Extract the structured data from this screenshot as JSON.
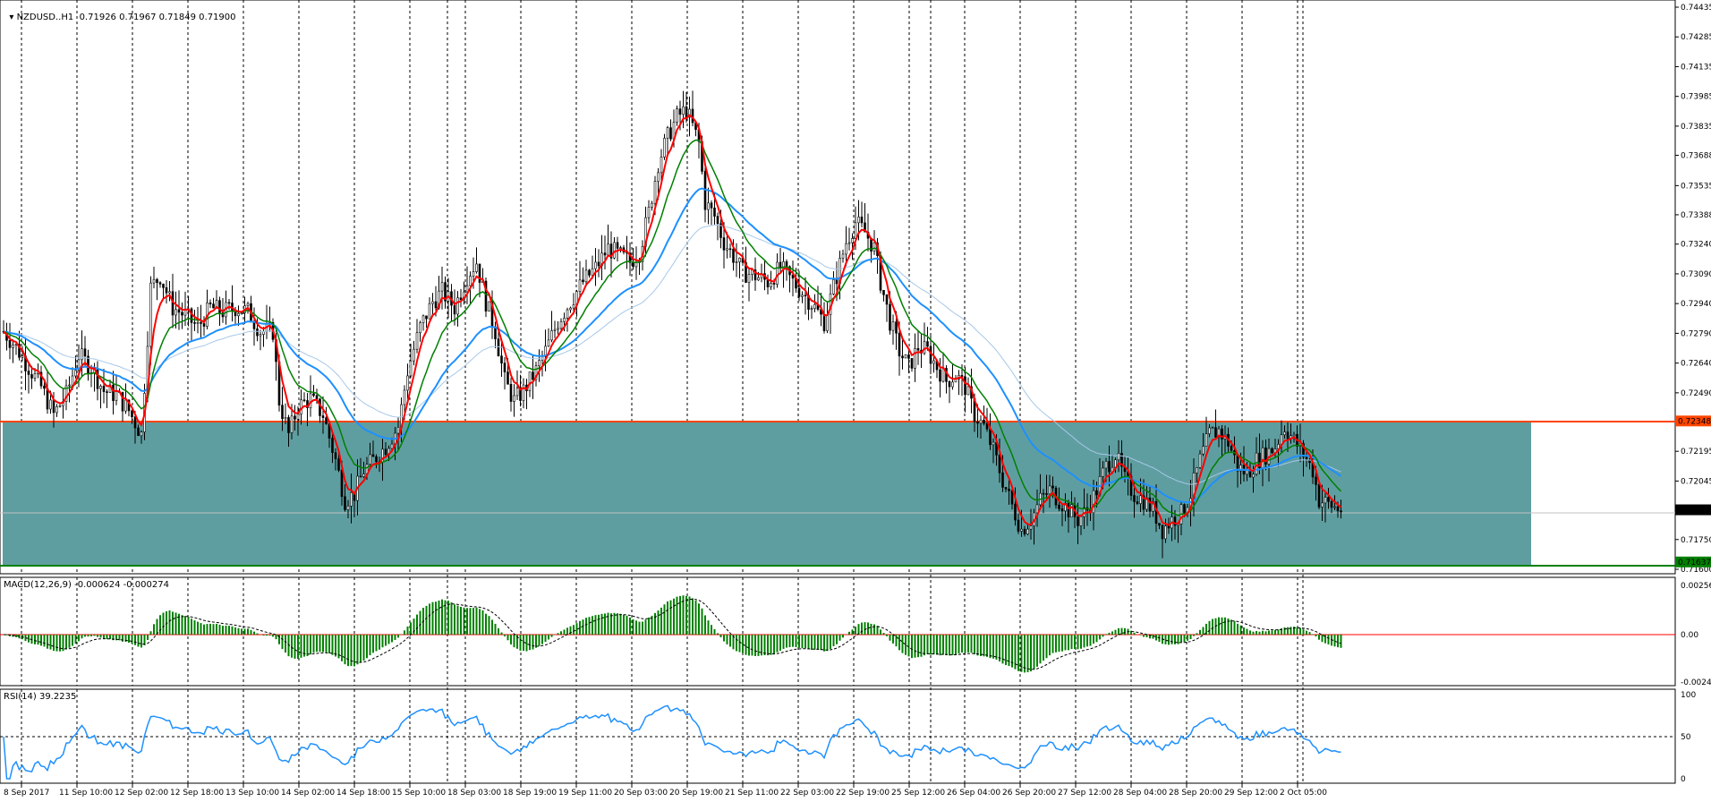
{
  "header": {
    "symbol": "NZDUSD..H1",
    "ohlc": "0.71926 0.71967 0.71849 0.71900",
    "macd": "MACD(12,26,9) -0.000624 -0.000274",
    "rsi": "RSI(14) 39.2235"
  },
  "chart_data": {
    "type": "candlestick",
    "symbol": "NZDUSD..H1",
    "timeframe": "H1",
    "price_axis": {
      "ticks": [
        "0.74435",
        "0.74285",
        "0.74135",
        "0.73985",
        "0.73835",
        "0.73688",
        "0.73535",
        "0.73388",
        "0.73240",
        "0.73090",
        "0.72940",
        "0.72790",
        "0.72640",
        "0.72490",
        "0.72195",
        "0.72045",
        "0.71750",
        "0.71600"
      ],
      "ylim": [
        0.716,
        0.74435
      ]
    },
    "price_markers": {
      "resistance": "0.72348",
      "current": "0.71900",
      "support": "0.71637"
    },
    "zone": {
      "from": 0.71637,
      "to": 0.72348,
      "color": "#5f9ea0"
    },
    "x_labels": [
      "8 Sep 2017",
      "11 Sep 10:00",
      "12 Sep 02:00",
      "12 Sep 18:00",
      "13 Sep 10:00",
      "14 Sep 02:00",
      "14 Sep 18:00",
      "15 Sep 10:00",
      "18 Sep 03:00",
      "18 Sep 19:00",
      "19 Sep 11:00",
      "20 Sep 03:00",
      "20 Sep 19:00",
      "21 Sep 11:00",
      "22 Sep 03:00",
      "22 Sep 19:00",
      "25 Sep 12:00",
      "26 Sep 04:00",
      "26 Sep 20:00",
      "27 Sep 12:00",
      "28 Sep 04:00",
      "28 Sep 20:00",
      "29 Sep 12:00",
      "2 Oct 05:00"
    ],
    "close_path": [
      [
        0,
        0.728
      ],
      [
        4,
        0.7272
      ],
      [
        8,
        0.7262
      ],
      [
        12,
        0.7252
      ],
      [
        16,
        0.7238
      ],
      [
        20,
        0.7248
      ],
      [
        24,
        0.7268
      ],
      [
        28,
        0.7262
      ],
      [
        32,
        0.725
      ],
      [
        36,
        0.7248
      ],
      [
        40,
        0.724
      ],
      [
        44,
        0.7228
      ],
      [
        47,
        0.7302
      ],
      [
        50,
        0.7308
      ],
      [
        54,
        0.7292
      ],
      [
        58,
        0.7288
      ],
      [
        62,
        0.7282
      ],
      [
        66,
        0.7292
      ],
      [
        70,
        0.729
      ],
      [
        74,
        0.7292
      ],
      [
        78,
        0.729
      ],
      [
        82,
        0.728
      ],
      [
        86,
        0.728
      ],
      [
        88,
        0.7245
      ],
      [
        91,
        0.7228
      ],
      [
        94,
        0.7242
      ],
      [
        98,
        0.7246
      ],
      [
        102,
        0.7238
      ],
      [
        106,
        0.7215
      ],
      [
        109,
        0.7195
      ],
      [
        112,
        0.7198
      ],
      [
        115,
        0.721
      ],
      [
        118,
        0.7215
      ],
      [
        122,
        0.7222
      ],
      [
        126,
        0.7232
      ],
      [
        129,
        0.726
      ],
      [
        133,
        0.7282
      ],
      [
        137,
        0.7295
      ],
      [
        140,
        0.73
      ],
      [
        144,
        0.7292
      ],
      [
        148,
        0.7308
      ],
      [
        151,
        0.7315
      ],
      [
        154,
        0.7295
      ],
      [
        157,
        0.728
      ],
      [
        160,
        0.7255
      ],
      [
        163,
        0.7245
      ],
      [
        166,
        0.725
      ],
      [
        170,
        0.726
      ],
      [
        173,
        0.727
      ],
      [
        177,
        0.7285
      ],
      [
        181,
        0.7295
      ],
      [
        185,
        0.7305
      ],
      [
        189,
        0.7312
      ],
      [
        193,
        0.7322
      ],
      [
        197,
        0.7318
      ],
      [
        200,
        0.7315
      ],
      [
        203,
        0.732
      ],
      [
        206,
        0.734
      ],
      [
        209,
        0.7365
      ],
      [
        212,
        0.7378
      ],
      [
        215,
        0.7388
      ],
      [
        218,
        0.7392
      ],
      [
        222,
        0.7375
      ],
      [
        224,
        0.7345
      ],
      [
        227,
        0.7338
      ],
      [
        230,
        0.7325
      ],
      [
        233,
        0.7318
      ],
      [
        236,
        0.731
      ],
      [
        240,
        0.7308
      ],
      [
        244,
        0.7305
      ],
      [
        248,
        0.7312
      ],
      [
        252,
        0.7305
      ],
      [
        256,
        0.7298
      ],
      [
        259,
        0.7292
      ],
      [
        262,
        0.7285
      ],
      [
        266,
        0.7308
      ],
      [
        269,
        0.7325
      ],
      [
        272,
        0.7335
      ],
      [
        275,
        0.733
      ],
      [
        278,
        0.7322
      ],
      [
        280,
        0.7305
      ],
      [
        283,
        0.7285
      ],
      [
        286,
        0.727
      ],
      [
        289,
        0.7262
      ],
      [
        292,
        0.7272
      ],
      [
        295,
        0.727
      ],
      [
        298,
        0.7262
      ],
      [
        301,
        0.7255
      ],
      [
        304,
        0.7258
      ],
      [
        307,
        0.7252
      ],
      [
        310,
        0.7238
      ],
      [
        313,
        0.7232
      ],
      [
        316,
        0.722
      ],
      [
        319,
        0.7205
      ],
      [
        322,
        0.7192
      ],
      [
        325,
        0.718
      ],
      [
        328,
        0.7185
      ],
      [
        331,
        0.7195
      ],
      [
        334,
        0.72
      ],
      [
        337,
        0.7195
      ],
      [
        340,
        0.719
      ],
      [
        343,
        0.7185
      ],
      [
        346,
        0.719
      ],
      [
        349,
        0.72
      ],
      [
        352,
        0.7212
      ],
      [
        355,
        0.7218
      ],
      [
        358,
        0.7205
      ],
      [
        361,
        0.7198
      ],
      [
        364,
        0.7195
      ],
      [
        367,
        0.719
      ],
      [
        370,
        0.718
      ],
      [
        373,
        0.7185
      ],
      [
        376,
        0.7188
      ],
      [
        379,
        0.7198
      ],
      [
        382,
        0.7215
      ],
      [
        385,
        0.7228
      ],
      [
        388,
        0.723
      ],
      [
        391,
        0.7224
      ],
      [
        394,
        0.7212
      ],
      [
        397,
        0.7208
      ],
      [
        400,
        0.7215
      ],
      [
        403,
        0.7218
      ],
      [
        406,
        0.7222
      ],
      [
        409,
        0.7232
      ],
      [
        412,
        0.7225
      ],
      [
        415,
        0.7218
      ],
      [
        418,
        0.721
      ],
      [
        420,
        0.7195
      ],
      [
        424,
        0.7192
      ],
      [
        427,
        0.719
      ]
    ],
    "indicators": {
      "macd": {
        "name": "MACD(12,26,9)",
        "value": -0.000624,
        "signal": -0.000274,
        "ticks": [
          "0.002562",
          "0.00",
          "-0.002411"
        ]
      },
      "rsi": {
        "name": "RSI(14)",
        "value": 39.2235,
        "ticks": [
          "100",
          "50",
          "0"
        ]
      }
    }
  }
}
